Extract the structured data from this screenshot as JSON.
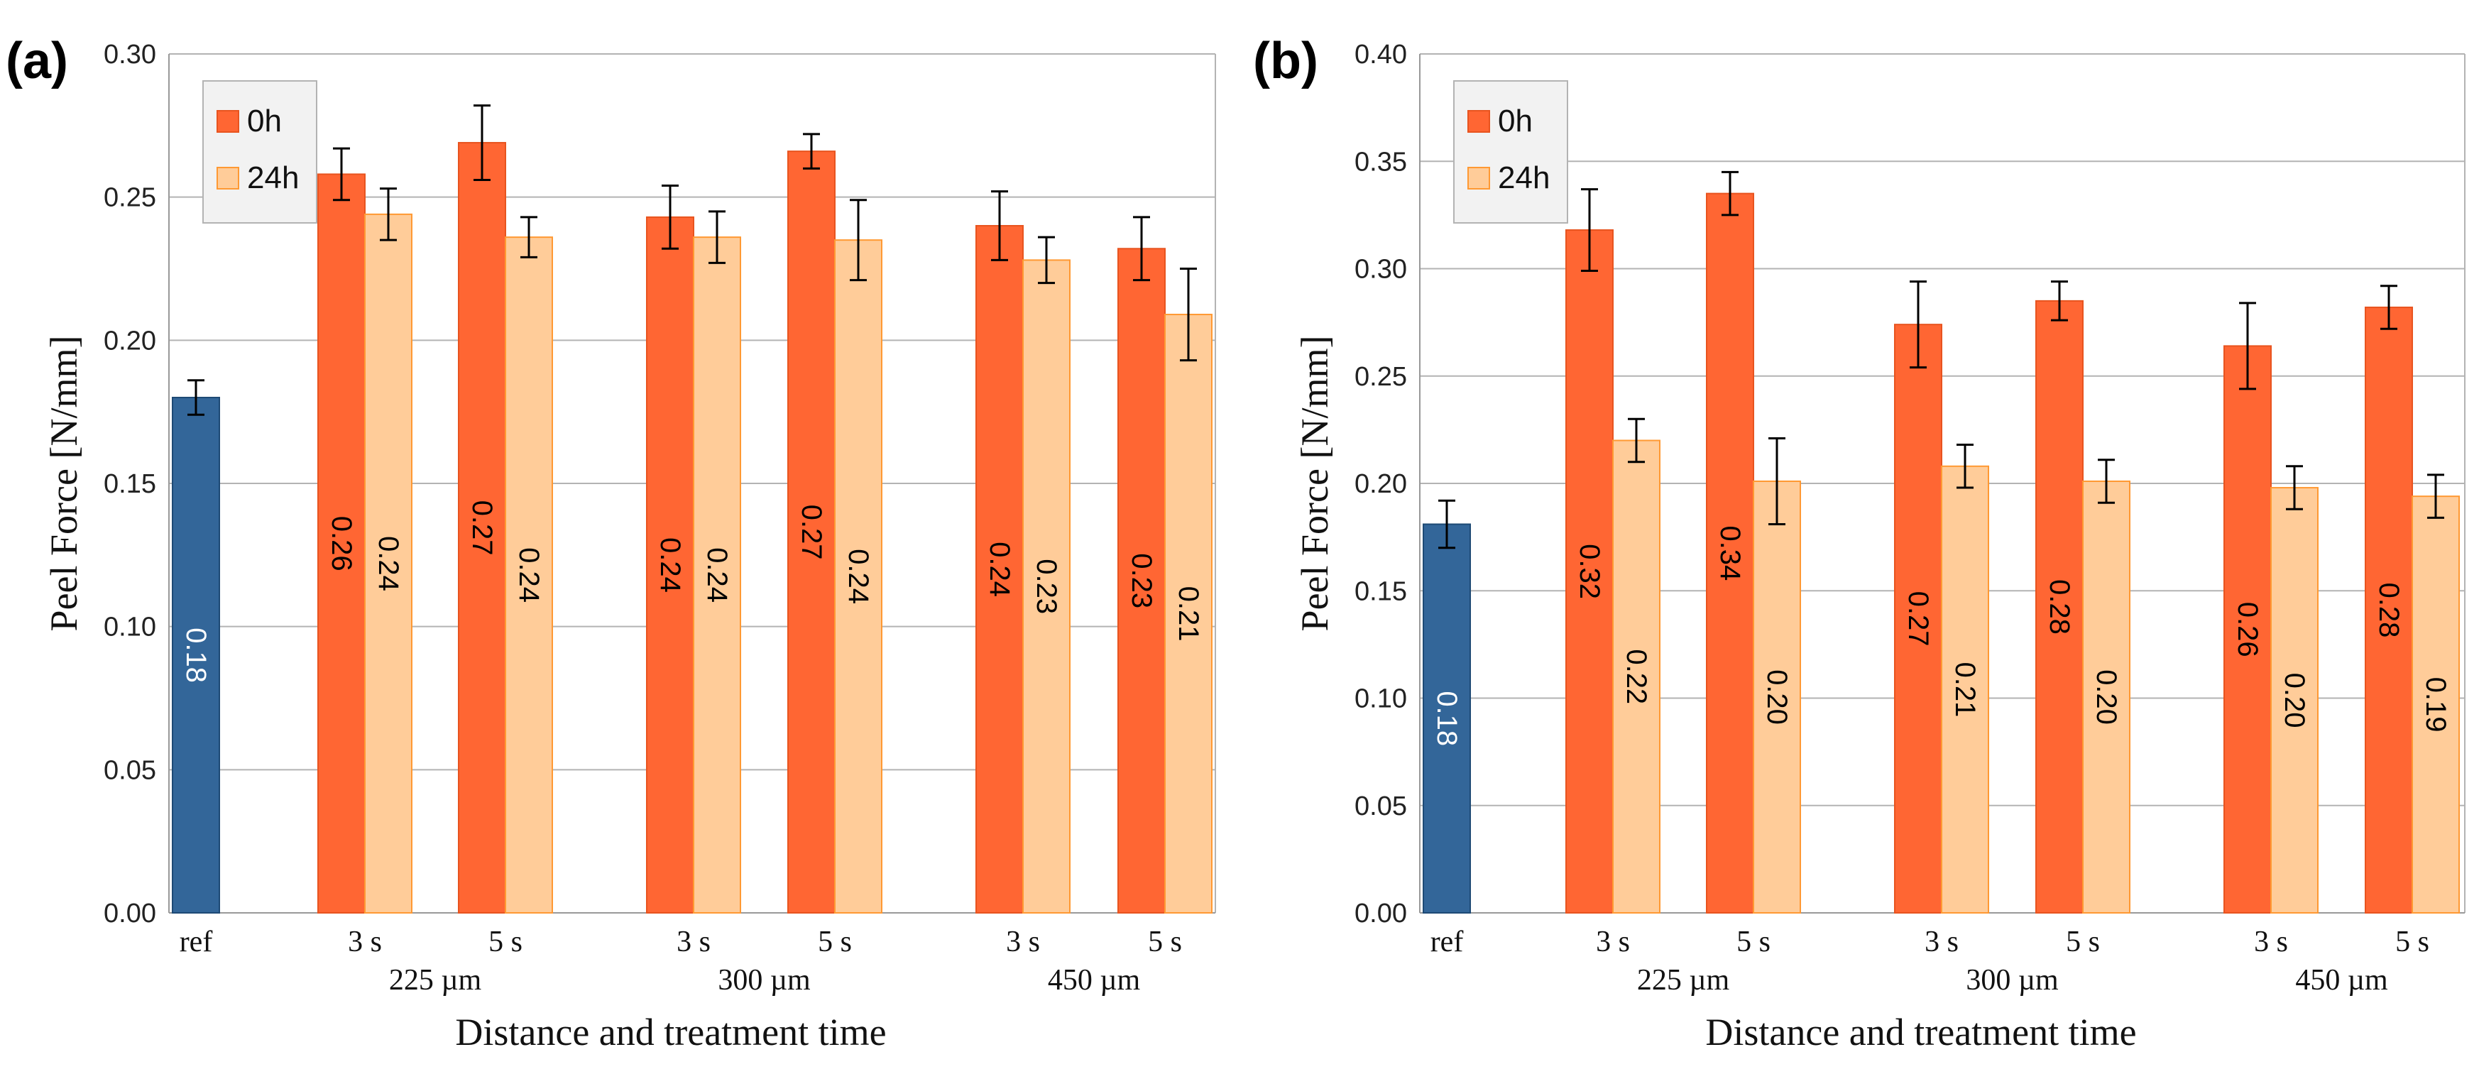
{
  "chart_data": [
    {
      "panel_label": "(a)",
      "type": "bar",
      "ylabel": "Peel Force [N/mm]",
      "xlabel": "Distance and treatment time",
      "ylim": [
        0,
        0.3
      ],
      "yticks": [
        "0.00",
        "0.05",
        "0.10",
        "0.15",
        "0.20",
        "0.25",
        "0.30"
      ],
      "grid": true,
      "legend": {
        "position": "top-left",
        "entries": [
          "0h",
          "24h"
        ]
      },
      "reference": {
        "category": "ref",
        "value": 0.18,
        "error": 0.006,
        "label": "0.18"
      },
      "groups": [
        "225 µm",
        "300 µm",
        "450 µm"
      ],
      "times": [
        "3 s",
        "5 s"
      ],
      "series": [
        {
          "name": "0h",
          "values": [
            0.258,
            0.269,
            0.243,
            0.266,
            0.24,
            0.232
          ],
          "errors": [
            0.009,
            0.013,
            0.011,
            0.006,
            0.012,
            0.011
          ],
          "labels": [
            "0.26",
            "0.27",
            "0.24",
            "0.27",
            "0.24",
            "0.23"
          ]
        },
        {
          "name": "24h",
          "values": [
            0.244,
            0.236,
            0.236,
            0.235,
            0.228,
            0.209
          ],
          "errors": [
            0.009,
            0.007,
            0.009,
            0.014,
            0.008,
            0.016
          ],
          "labels": [
            "0.24",
            "0.24",
            "0.24",
            "0.24",
            "0.23",
            "0.21"
          ]
        }
      ]
    },
    {
      "panel_label": "(b)",
      "type": "bar",
      "ylabel": "Peel Force [N/mm]",
      "xlabel": "Distance and treatment time",
      "ylim": [
        0,
        0.4
      ],
      "yticks": [
        "0.00",
        "0.05",
        "0.10",
        "0.15",
        "0.20",
        "0.25",
        "0.30",
        "0.35",
        "0.40"
      ],
      "grid": true,
      "legend": {
        "position": "top-left",
        "entries": [
          "0h",
          "24h"
        ]
      },
      "reference": {
        "category": "ref",
        "value": 0.181,
        "error": 0.011,
        "label": "0.18"
      },
      "groups": [
        "225 µm",
        "300 µm",
        "450 µm"
      ],
      "times": [
        "3 s",
        "5 s"
      ],
      "series": [
        {
          "name": "0h",
          "values": [
            0.318,
            0.335,
            0.274,
            0.285,
            0.264,
            0.282
          ],
          "errors": [
            0.019,
            0.01,
            0.02,
            0.009,
            0.02,
            0.01
          ],
          "labels": [
            "0.32",
            "0.34",
            "0.27",
            "0.28",
            "0.26",
            "0.28"
          ]
        },
        {
          "name": "24h",
          "values": [
            0.22,
            0.201,
            0.208,
            0.201,
            0.198,
            0.194
          ],
          "errors": [
            0.01,
            0.02,
            0.01,
            0.01,
            0.01,
            0.01
          ],
          "labels": [
            "0.22",
            "0.20",
            "0.21",
            "0.20",
            "0.20",
            "0.19"
          ]
        }
      ]
    }
  ],
  "colors": {
    "ref": "#336699",
    "ref_edge": "#1e4a75",
    "series_0h": "#ff6633",
    "series_0h_edge": "#e8541f",
    "series_24h": "#ffcc99",
    "series_24h_edge": "#ff9933",
    "grid": "#b3b3b3",
    "axis": "#999999",
    "error_bar": "#000000",
    "legend_bg": "#f2f2f2",
    "legend_border": "#b3b3b3"
  }
}
